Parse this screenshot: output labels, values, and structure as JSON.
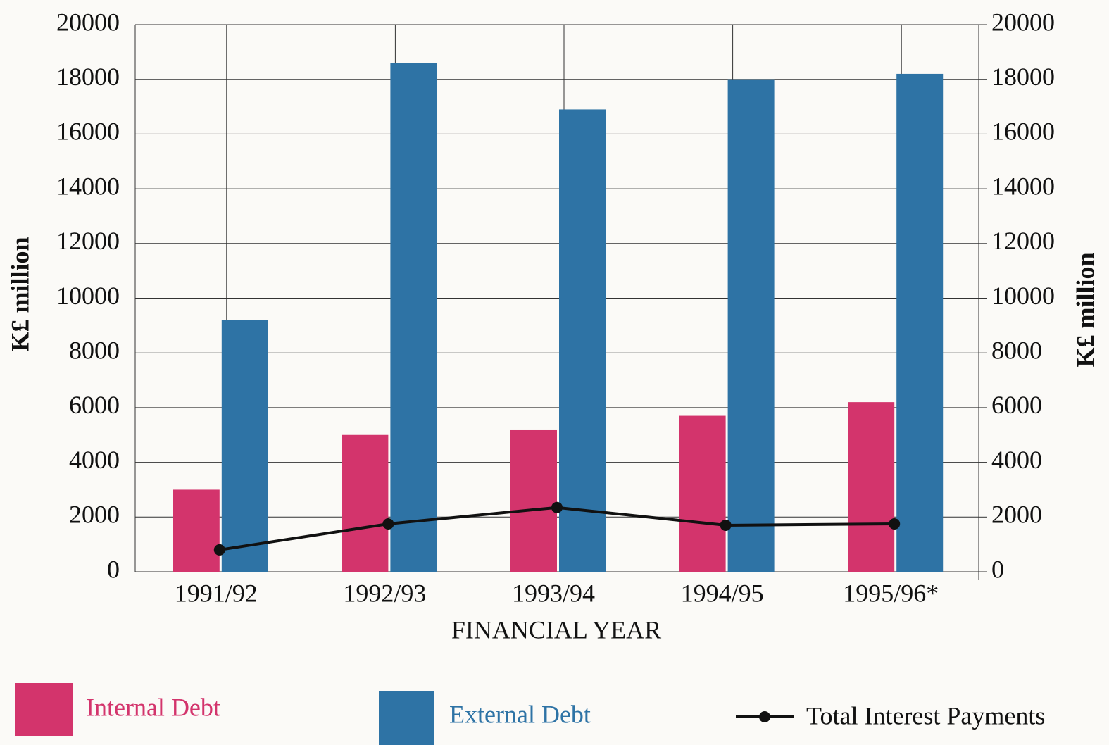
{
  "chart_data": {
    "type": "bar",
    "x_label": "FINANCIAL YEAR",
    "y_label": "K£ million",
    "y2_label": "K£ million",
    "categories": [
      "1991/92",
      "1992/93",
      "1993/94",
      "1994/95",
      "1995/96*"
    ],
    "series": [
      {
        "name": "Internal Debt",
        "color": "#d3346c",
        "values": [
          3000,
          5000,
          5200,
          5700,
          6200
        ]
      },
      {
        "name": "External Debt",
        "color": "#2e73a5",
        "values": [
          9200,
          18600,
          16900,
          18000,
          18200
        ]
      },
      {
        "name": "Total Interest Payments",
        "type": "line",
        "axis": "y2",
        "color": "#111111",
        "values": [
          800,
          1750,
          2350,
          1700,
          1750
        ]
      }
    ],
    "ylim": [
      0,
      20000
    ],
    "yticks": [
      0,
      2000,
      4000,
      6000,
      8000,
      10000,
      12000,
      14000,
      16000,
      18000,
      20000
    ],
    "y2lim": [
      0,
      20000
    ],
    "y2ticks": [
      0,
      2000,
      4000,
      6000,
      8000,
      10000,
      12000,
      14000,
      16000,
      18000,
      20000
    ],
    "grid": true
  }
}
